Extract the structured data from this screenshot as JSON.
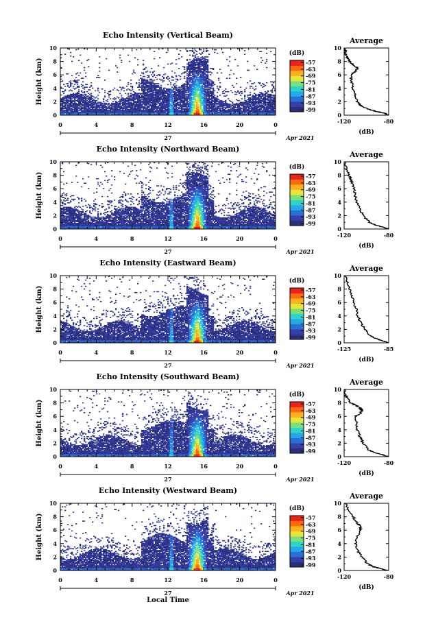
{
  "chart_data": {
    "type": "heatmap",
    "colorbar": {
      "unit": "(dB)",
      "ticks": [
        "-57",
        "-63",
        "-69",
        "-75",
        "-81",
        "-87",
        "-93",
        "-99"
      ],
      "range": [
        -99,
        -57
      ],
      "colors": [
        "#2b2f7a",
        "#3640a8",
        "#2a6fd4",
        "#22a9e8",
        "#2fd3c8",
        "#7be07a",
        "#e6e63a",
        "#ffb020",
        "#ff6a10",
        "#e8241c"
      ]
    },
    "x_ticks": [
      "0",
      "4",
      "8",
      "12",
      "16",
      "20",
      "0"
    ],
    "y_ticks": [
      "0",
      "2",
      "4",
      "6",
      "8",
      "10"
    ],
    "xlim": [
      0,
      24
    ],
    "ylim": [
      0,
      10
    ],
    "date_center": "27",
    "date_right": "Apr 2021",
    "xlabel": "Local Time",
    "ylabel": "Height (km)",
    "avg_title": "Average",
    "avg_xlabel": "(dB)",
    "panels": [
      {
        "title": "Echo Intensity (Vertical Beam)",
        "avg_ticks": [
          "-120",
          "-80"
        ],
        "avg_xlim": [
          -120,
          -80
        ],
        "avg_profile": [
          [
            0,
            -80
          ],
          [
            0.3,
            -84
          ],
          [
            0.6,
            -92
          ],
          [
            1,
            -100
          ],
          [
            1.5,
            -106
          ],
          [
            2,
            -108
          ],
          [
            3,
            -110
          ],
          [
            4,
            -112
          ],
          [
            5,
            -113
          ],
          [
            6,
            -114
          ],
          [
            6.5,
            -110
          ],
          [
            7,
            -108
          ],
          [
            7.5,
            -112
          ],
          [
            8,
            -115
          ],
          [
            8.5,
            -117
          ],
          [
            9,
            -118
          ],
          [
            9.5,
            -119
          ],
          [
            10,
            -120
          ]
        ]
      },
      {
        "title": "Echo Intensity (Northward Beam)",
        "avg_ticks": [
          "-120",
          "-80"
        ],
        "avg_xlim": [
          -120,
          -80
        ],
        "avg_profile": [
          [
            0,
            -80
          ],
          [
            0.3,
            -86
          ],
          [
            0.6,
            -92
          ],
          [
            1,
            -97
          ],
          [
            2,
            -103
          ],
          [
            3,
            -106
          ],
          [
            4,
            -109
          ],
          [
            5,
            -110
          ],
          [
            6,
            -111
          ],
          [
            7,
            -113
          ],
          [
            7.5,
            -114
          ],
          [
            8,
            -116
          ],
          [
            9,
            -118
          ],
          [
            10,
            -119
          ]
        ]
      },
      {
        "title": "Echo Intensity (Eastward Beam)",
        "avg_ticks": [
          "-125",
          "-85"
        ],
        "avg_xlim": [
          -125,
          -85
        ],
        "avg_profile": [
          [
            0,
            -85
          ],
          [
            0.3,
            -90
          ],
          [
            0.6,
            -96
          ],
          [
            1,
            -101
          ],
          [
            2,
            -106
          ],
          [
            3,
            -110
          ],
          [
            4,
            -113
          ],
          [
            5,
            -114
          ],
          [
            6,
            -116
          ],
          [
            7,
            -118
          ],
          [
            8,
            -120
          ],
          [
            9,
            -122
          ],
          [
            10,
            -124
          ]
        ]
      },
      {
        "title": "Echo Intensity (Southward Beam)",
        "avg_ticks": [
          "-120",
          "-80"
        ],
        "avg_xlim": [
          -120,
          -80
        ],
        "avg_profile": [
          [
            0,
            -80
          ],
          [
            0.3,
            -86
          ],
          [
            0.6,
            -92
          ],
          [
            1,
            -98
          ],
          [
            2,
            -103
          ],
          [
            3,
            -106
          ],
          [
            4,
            -108
          ],
          [
            5,
            -109
          ],
          [
            6,
            -110
          ],
          [
            6.5,
            -105
          ],
          [
            7,
            -104
          ],
          [
            7.5,
            -108
          ],
          [
            8,
            -114
          ],
          [
            9,
            -118
          ],
          [
            10,
            -120
          ]
        ]
      },
      {
        "title": "Echo Intensity (Westward Beam)",
        "avg_ticks": [
          "-120",
          "-80"
        ],
        "avg_xlim": [
          -120,
          -80
        ],
        "avg_profile": [
          [
            0,
            -80
          ],
          [
            0.3,
            -88
          ],
          [
            0.6,
            -94
          ],
          [
            1,
            -99
          ],
          [
            2,
            -104
          ],
          [
            3,
            -108
          ],
          [
            4,
            -110
          ],
          [
            5,
            -108
          ],
          [
            6,
            -106
          ],
          [
            6.5,
            -105
          ],
          [
            7,
            -108
          ],
          [
            7.5,
            -110
          ],
          [
            8,
            -112
          ],
          [
            9,
            -116
          ],
          [
            10,
            -119
          ]
        ]
      }
    ]
  }
}
